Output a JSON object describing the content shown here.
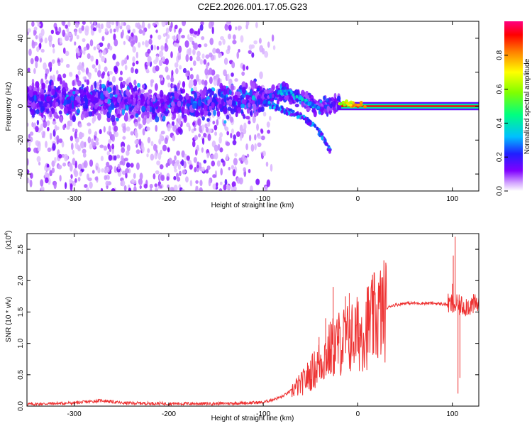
{
  "chart_data": [
    {
      "type": "heatmap",
      "title": "C2E2.2026.001.17.05.G23",
      "xlabel": "Height of straight line (km)",
      "ylabel": "Frequency (Hz)",
      "xlim": [
        -350,
        128
      ],
      "ylim": [
        -50,
        50
      ],
      "x_ticks": [
        -300,
        -200,
        -100,
        0,
        100
      ],
      "y_ticks": [
        -40,
        -20,
        0,
        20,
        40
      ],
      "colorbar": {
        "label": "Normalized spectral amplitude",
        "range": [
          0,
          1
        ],
        "ticks": [
          0.0,
          0.2,
          0.4,
          0.6,
          0.8
        ],
        "colors": [
          "#ffffff",
          "#c080ff",
          "#8000ff",
          "#2020ff",
          "#00c0ff",
          "#00ff80",
          "#80ff00",
          "#ffff00",
          "#ff8000",
          "#ff0000",
          "#ff0080"
        ]
      },
      "ridge": [
        {
          "x": -350,
          "f": 5
        },
        {
          "x": -300,
          "f": 4
        },
        {
          "x": -250,
          "f": 3
        },
        {
          "x": -200,
          "f": 2
        },
        {
          "x": -150,
          "f": 2
        },
        {
          "x": -120,
          "f": 3
        },
        {
          "x": -100,
          "f": 5
        },
        {
          "x": -80,
          "f": 8
        },
        {
          "x": -60,
          "f": 4
        },
        {
          "x": -40,
          "f": 0
        },
        {
          "x": -20,
          "f": 2
        },
        {
          "x": 0,
          "f": 1
        },
        {
          "x": 50,
          "f": 0
        },
        {
          "x": 100,
          "f": 0
        },
        {
          "x": 128,
          "f": 0
        }
      ],
      "lower_branch": [
        {
          "x": -100,
          "f": 2
        },
        {
          "x": -80,
          "f": -2
        },
        {
          "x": -60,
          "f": -6
        },
        {
          "x": -45,
          "f": -12
        },
        {
          "x": -35,
          "f": -20
        },
        {
          "x": -28,
          "f": -28
        }
      ]
    },
    {
      "type": "line",
      "title": "",
      "xlabel": "Height of straight line (km)",
      "ylabel": "SNR (10 * v/v)",
      "y_multiplier": "(x10",
      "y_multiplier_exp": "4",
      "xlim": [
        -350,
        128
      ],
      "ylim": [
        0,
        2.75
      ],
      "x_ticks": [
        -300,
        -200,
        -100,
        0,
        100
      ],
      "y_ticks": [
        0.0,
        0.5,
        1.0,
        1.5,
        2.0,
        2.5
      ],
      "color": "#ee3333",
      "envelope": [
        {
          "x": -350,
          "y": 0.03
        },
        {
          "x": -300,
          "y": 0.05
        },
        {
          "x": -270,
          "y": 0.09
        },
        {
          "x": -250,
          "y": 0.05
        },
        {
          "x": -200,
          "y": 0.04
        },
        {
          "x": -150,
          "y": 0.04
        },
        {
          "x": -120,
          "y": 0.05
        },
        {
          "x": -100,
          "y": 0.06
        },
        {
          "x": -80,
          "y": 0.15
        },
        {
          "x": -60,
          "y": 0.35
        },
        {
          "x": -45,
          "y": 0.6
        },
        {
          "x": -35,
          "y": 0.8
        },
        {
          "x": -25,
          "y": 0.95
        },
        {
          "x": -15,
          "y": 1.05
        },
        {
          "x": -5,
          "y": 1.1
        },
        {
          "x": 5,
          "y": 1.2
        },
        {
          "x": 15,
          "y": 1.35
        },
        {
          "x": 25,
          "y": 1.5
        },
        {
          "x": 35,
          "y": 1.6
        },
        {
          "x": 50,
          "y": 1.64
        },
        {
          "x": 80,
          "y": 1.64
        },
        {
          "x": 95,
          "y": 1.62
        },
        {
          "x": 110,
          "y": 1.6
        },
        {
          "x": 128,
          "y": 1.62
        }
      ],
      "spikes": [
        {
          "x": -41,
          "y": 1.1
        },
        {
          "x": -34,
          "y": 1.4
        },
        {
          "x": -26,
          "y": 1.9
        },
        {
          "x": -20,
          "y": 1.35
        },
        {
          "x": -13,
          "y": 1.75
        },
        {
          "x": -9,
          "y": 1.8
        },
        {
          "x": 10,
          "y": 1.9
        },
        {
          "x": 100,
          "y": 1.95
        },
        {
          "x": 101,
          "y": 2.4
        },
        {
          "x": 103,
          "y": 2.7
        },
        {
          "x": 106,
          "y": 0.2
        },
        {
          "x": 108,
          "y": 0.45
        }
      ]
    }
  ]
}
